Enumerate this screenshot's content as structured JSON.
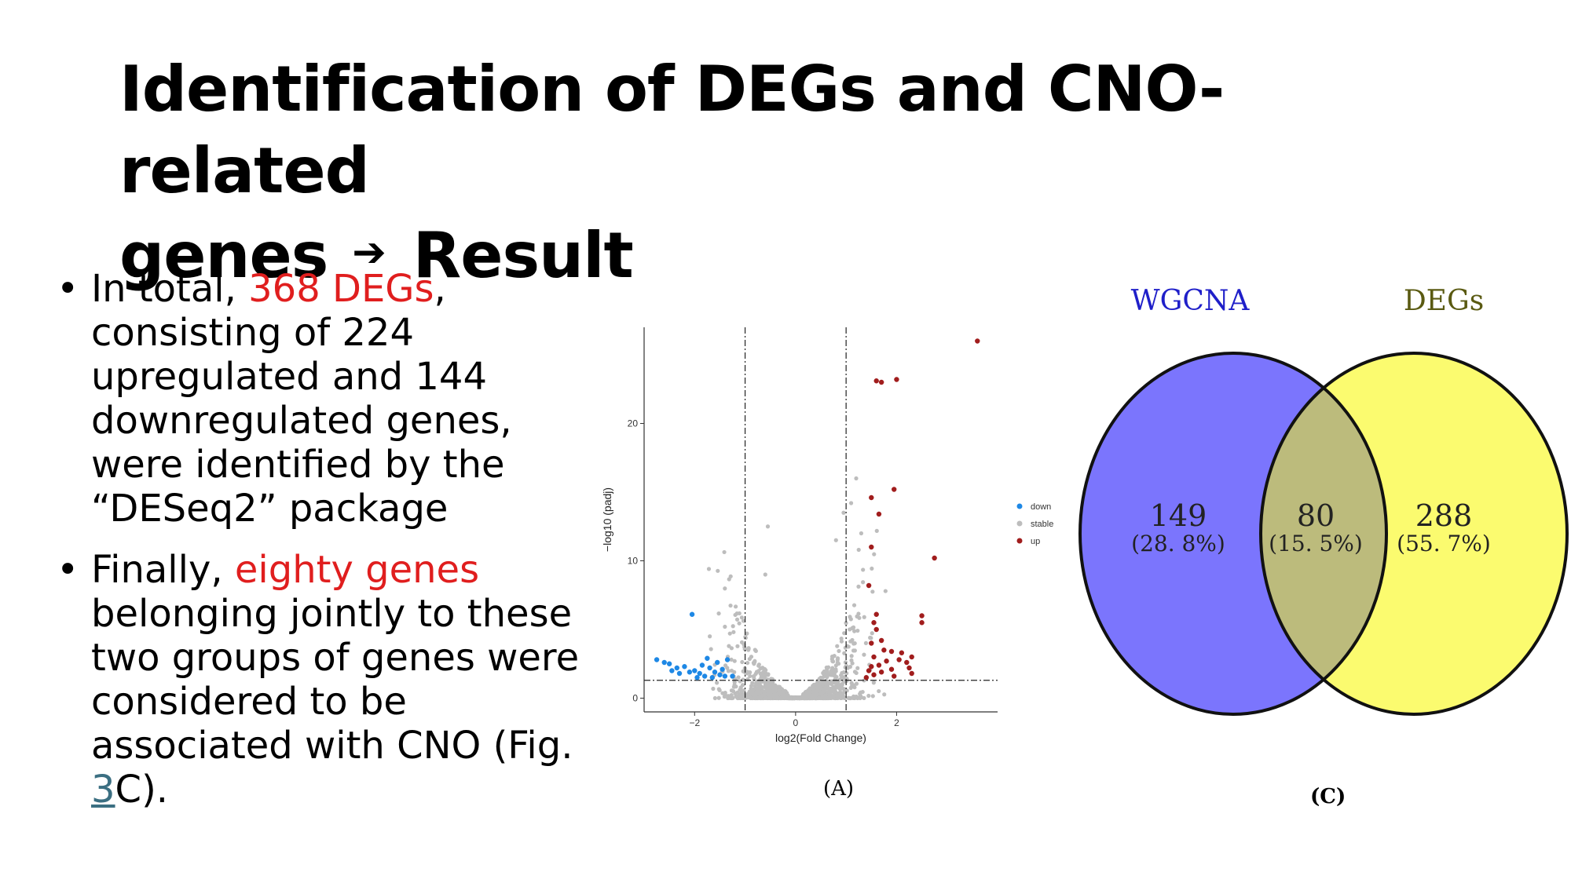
{
  "slide": {
    "title_line1": "Identification of DEGs and CNO-related",
    "title_line2_a": "genes",
    "title_arrow": "➔",
    "title_line2_b": "Result"
  },
  "bullets": [
    {
      "parts": [
        {
          "text": "In total, "
        },
        {
          "text": "368 DEGs",
          "color": "#e01e1e"
        },
        {
          "text": ", consisting of 224 upregulated and 144 downregulated genes, were identified by the “DESeq2” package"
        }
      ]
    },
    {
      "parts": [
        {
          "text": "Finally, "
        },
        {
          "text": "eighty genes",
          "color": "#e01e1e"
        },
        {
          "text": " belonging jointly to these two groups of genes were considered to be associated with CNO (Fig. "
        },
        {
          "text": "3",
          "link": true
        },
        {
          "text": "C)."
        }
      ]
    }
  ],
  "chart_data": [
    {
      "type": "scatter",
      "title": "",
      "xlabel": "log2(Fold Change)",
      "ylabel": "−log10 (padj)",
      "xlim": [
        -3,
        4
      ],
      "ylim": [
        -1,
        27
      ],
      "xticks": [
        -2,
        0,
        2
      ],
      "yticks": [
        0,
        10,
        20
      ],
      "thresholds": {
        "x": [
          -1,
          1
        ],
        "y": 1.3
      },
      "legend": {
        "placement": "right",
        "entries": [
          {
            "label": "down",
            "color": "#1e88e5"
          },
          {
            "label": "stable",
            "color": "#bdbdbd"
          },
          {
            "label": "up",
            "color": "#a11d1d"
          }
        ]
      },
      "series": [
        {
          "name": "down",
          "color": "#1e88e5",
          "points": [
            [
              -2.75,
              2.8
            ],
            [
              -2.6,
              2.6
            ],
            [
              -2.5,
              2.5
            ],
            [
              -2.35,
              2.2
            ],
            [
              -2.2,
              2.3
            ],
            [
              -2.1,
              1.9
            ],
            [
              -2.0,
              2.0
            ],
            [
              -1.9,
              1.8
            ],
            [
              -1.85,
              2.4
            ],
            [
              -1.8,
              1.6
            ],
            [
              -1.7,
              2.2
            ],
            [
              -1.6,
              1.9
            ],
            [
              -1.55,
              2.6
            ],
            [
              -1.5,
              1.7
            ],
            [
              -1.45,
              2.1
            ],
            [
              -1.4,
              1.6
            ],
            [
              -1.35,
              2.8
            ],
            [
              -2.05,
              6.1
            ],
            [
              -1.95,
              1.5
            ],
            [
              -2.3,
              1.8
            ],
            [
              -1.65,
              1.5
            ],
            [
              -2.45,
              2.0
            ],
            [
              -1.75,
              2.9
            ],
            [
              -1.25,
              1.6
            ]
          ]
        },
        {
          "name": "stable",
          "color": "#bdbdbd",
          "points": []
        },
        {
          "name": "up",
          "color": "#a11d1d",
          "points": [
            [
              3.6,
              26.0
            ],
            [
              1.6,
              23.1
            ],
            [
              1.7,
              23.0
            ],
            [
              2.0,
              23.2
            ],
            [
              1.5,
              14.6
            ],
            [
              1.95,
              15.2
            ],
            [
              1.65,
              13.4
            ],
            [
              1.5,
              11.0
            ],
            [
              2.75,
              10.2
            ],
            [
              2.5,
              6.0
            ],
            [
              2.5,
              5.5
            ],
            [
              1.45,
              8.2
            ],
            [
              1.6,
              6.1
            ],
            [
              1.55,
              5.5
            ],
            [
              1.6,
              5.0
            ],
            [
              1.7,
              4.2
            ],
            [
              1.5,
              4.0
            ],
            [
              1.75,
              3.5
            ],
            [
              1.9,
              3.4
            ],
            [
              2.1,
              3.3
            ],
            [
              1.55,
              3.0
            ],
            [
              2.05,
              2.8
            ],
            [
              1.8,
              2.7
            ],
            [
              2.2,
              2.6
            ],
            [
              1.65,
              2.4
            ],
            [
              1.5,
              2.3
            ],
            [
              1.9,
              2.1
            ],
            [
              1.7,
              1.9
            ],
            [
              2.3,
              1.8
            ],
            [
              1.55,
              1.7
            ],
            [
              1.95,
              1.6
            ],
            [
              1.4,
              1.5
            ],
            [
              2.25,
              2.2
            ],
            [
              1.45,
              2.0
            ],
            [
              2.3,
              3.0
            ]
          ]
        }
      ]
    },
    {
      "type": "venn",
      "sets": [
        {
          "name": "WGCNA",
          "color": "#7b75fd",
          "label_color": "#1f1fc9"
        },
        {
          "name": "DEGs",
          "color": "#fbfb6f",
          "label_color": "#5a5a12"
        }
      ],
      "overlap_color": "#bcbb7c",
      "regions": [
        {
          "key": "wgcna_only",
          "count": "149",
          "percent": "(28. 8%)"
        },
        {
          "key": "both",
          "count": "80",
          "percent": "(15. 5%)"
        },
        {
          "key": "degs_only",
          "count": "288",
          "percent": "(55. 7%)"
        }
      ]
    }
  ],
  "captions": {
    "a": "(A)",
    "c": "(C)"
  }
}
